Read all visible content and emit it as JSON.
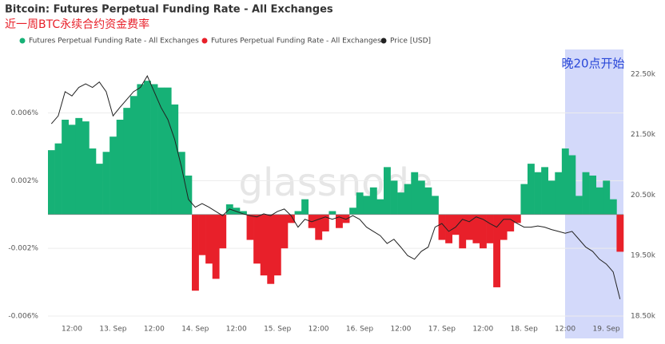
{
  "chart_data": {
    "type": "bar",
    "title": "Bitcoin: Futures Perpetual Funding Rate - All Exchanges",
    "subtitle": "近一周BTC永续合约资金费率",
    "annotation": "晚20点开始",
    "watermark": "glassnode",
    "categories": [
      null,
      null,
      null,
      "12:00",
      null,
      null,
      null,
      null,
      null,
      "13. Sep",
      null,
      null,
      null,
      null,
      null,
      "12:00",
      null,
      null,
      null,
      null,
      null,
      "14. Sep",
      null,
      null,
      null,
      null,
      null,
      "12:00",
      null,
      null,
      null,
      null,
      null,
      "15. Sep",
      null,
      null,
      null,
      null,
      null,
      "12:00",
      null,
      null,
      null,
      null,
      null,
      "16. Sep",
      null,
      null,
      null,
      null,
      null,
      "12:00",
      null,
      null,
      null,
      null,
      null,
      "17. Sep",
      null,
      null,
      null,
      null,
      null,
      "12:00",
      null,
      null,
      null,
      null,
      null,
      "18. Sep",
      null,
      null,
      null,
      null,
      null,
      "12:00",
      null,
      null,
      null,
      null,
      null,
      "19. Sep",
      null,
      null
    ],
    "ylim": [
      -0.006,
      0.0089
    ],
    "yticks": [
      {
        "value": -0.006,
        "label": "-0.006%"
      },
      {
        "value": -0.002,
        "label": "-0.002%"
      },
      {
        "value": 0.002,
        "label": "0.002%"
      },
      {
        "value": 0.006,
        "label": "0.006%"
      }
    ],
    "y2lim": [
      18500,
      22670
    ],
    "y2ticks": [
      {
        "value": 18500,
        "label": "18.50k"
      },
      {
        "value": 19500,
        "label": "19.50k"
      },
      {
        "value": 20500,
        "label": "20.50k"
      },
      {
        "value": 21500,
        "label": "21.50k"
      },
      {
        "value": 22500,
        "label": "22.50k"
      }
    ],
    "grid": true,
    "legend": "top-left",
    "series": [
      {
        "name": "Futures Perpetual Funding Rate - All Exchanges",
        "color": "#16b176",
        "values": [
          0.0038,
          0.0042,
          0.0056,
          0.0053,
          0.0057,
          0.0055,
          0.0039,
          0.003,
          0.0037,
          0.0046,
          0.0056,
          0.0063,
          0.007,
          0.0077,
          0.0079,
          0.0077,
          0.0075,
          0.0075,
          0.0065,
          0.0037,
          0.0023,
          null,
          null,
          null,
          null,
          null,
          0.0006,
          0.0004,
          0.0002,
          null,
          null,
          null,
          null,
          null,
          null,
          null,
          0.0002,
          0.0009,
          null,
          null,
          null,
          0.0002,
          null,
          null,
          0.0004,
          0.0013,
          0.0011,
          0.0016,
          0.0009,
          0.0028,
          0.002,
          0.0013,
          0.0018,
          0.0025,
          0.002,
          0.0016,
          0.0011,
          null,
          null,
          null,
          null,
          null,
          null,
          null,
          null,
          null,
          null,
          null,
          null,
          0.0018,
          0.003,
          0.0025,
          0.0028,
          0.002,
          0.0025,
          0.0039,
          0.0035,
          0.0011,
          0.0025,
          0.0023,
          0.0016,
          0.002,
          0.0009,
          null
        ]
      },
      {
        "name": "Futures Perpetual Funding Rate - All Exchanges",
        "color": "#e8202a",
        "values": [
          null,
          null,
          null,
          null,
          null,
          null,
          null,
          null,
          null,
          null,
          null,
          null,
          null,
          null,
          null,
          null,
          null,
          null,
          null,
          null,
          null,
          -0.0045,
          -0.0024,
          -0.0029,
          -0.0038,
          -0.002,
          null,
          null,
          null,
          -0.0015,
          -0.0029,
          -0.0036,
          -0.0041,
          -0.0036,
          -0.002,
          -0.0005,
          null,
          null,
          -0.0008,
          -0.0015,
          -0.001,
          null,
          -0.0008,
          -0.0005,
          null,
          null,
          null,
          null,
          null,
          null,
          null,
          null,
          null,
          null,
          null,
          null,
          null,
          -0.0015,
          -0.0017,
          -0.0012,
          -0.002,
          -0.0015,
          -0.0017,
          -0.002,
          -0.0017,
          -0.0043,
          -0.0015,
          -0.001,
          -0.0005,
          null,
          null,
          null,
          null,
          null,
          null,
          null,
          null,
          null,
          null,
          null,
          null,
          null,
          null,
          -0.0022
        ]
      },
      {
        "name": "Price [USD]",
        "color": "#222222",
        "axis": "y2",
        "values": [
          21680,
          21810,
          22210,
          22140,
          22280,
          22340,
          22280,
          22370,
          22210,
          21810,
          21950,
          22080,
          22210,
          22280,
          22470,
          22210,
          21950,
          21750,
          21420,
          20960,
          20430,
          20300,
          20360,
          20300,
          20230,
          20160,
          20270,
          20230,
          20190,
          20160,
          20140,
          20190,
          20160,
          20230,
          20270,
          20160,
          19970,
          20100,
          20060,
          20100,
          20140,
          20100,
          20140,
          20100,
          20160,
          20100,
          19970,
          19900,
          19830,
          19700,
          19770,
          19640,
          19500,
          19440,
          19570,
          19640,
          19970,
          20030,
          19900,
          19970,
          20100,
          20060,
          20140,
          20100,
          20030,
          19970,
          20100,
          20100,
          20030,
          19970,
          19970,
          19990,
          19970,
          19930,
          19900,
          19870,
          19900,
          19770,
          19640,
          19570,
          19440,
          19360,
          19230,
          18780
        ]
      }
    ]
  }
}
